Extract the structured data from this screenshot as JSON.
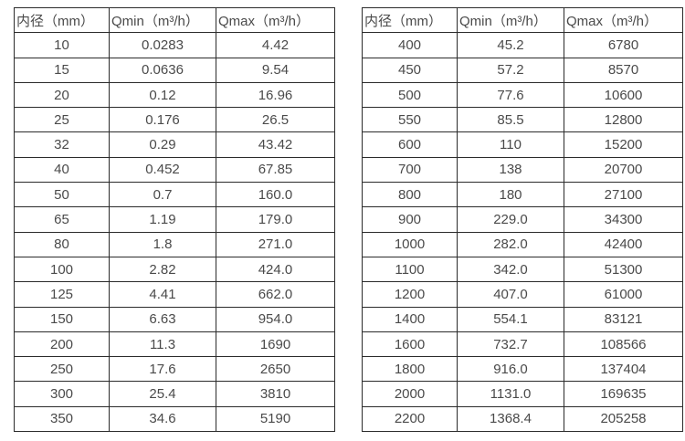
{
  "colors": {
    "background": "#ffffff",
    "border": "#2b2b2b",
    "text": "#4a4a4a"
  },
  "chart_data": [
    {
      "type": "table",
      "name": "flow-rate-table-small-diameters",
      "columns": [
        "内径（mm）",
        "Qmin（m³/h）",
        "Qmax（m³/h）"
      ],
      "rows": [
        [
          "10",
          "0.0283",
          "4.42"
        ],
        [
          "15",
          "0.0636",
          "9.54"
        ],
        [
          "20",
          "0.12",
          "16.96"
        ],
        [
          "25",
          "0.176",
          "26.5"
        ],
        [
          "32",
          "0.29",
          "43.42"
        ],
        [
          "40",
          "0.452",
          "67.85"
        ],
        [
          "50",
          "0.7",
          "160.0"
        ],
        [
          "65",
          "1.19",
          "179.0"
        ],
        [
          "80",
          "1.8",
          "271.0"
        ],
        [
          "100",
          "2.82",
          "424.0"
        ],
        [
          "125",
          "4.41",
          "662.0"
        ],
        [
          "150",
          "6.63",
          "954.0"
        ],
        [
          "200",
          "11.3",
          "1690"
        ],
        [
          "250",
          "17.6",
          "2650"
        ],
        [
          "300",
          "25.4",
          "3810"
        ],
        [
          "350",
          "34.6",
          "5190"
        ]
      ]
    },
    {
      "type": "table",
      "name": "flow-rate-table-large-diameters",
      "columns": [
        "内径（mm）",
        "Qmin（m³/h）",
        "Qmax（m³/h）"
      ],
      "rows": [
        [
          "400",
          "45.2",
          "6780"
        ],
        [
          "450",
          "57.2",
          "8570"
        ],
        [
          "500",
          "77.6",
          "10600"
        ],
        [
          "550",
          "85.5",
          "12800"
        ],
        [
          "600",
          "110",
          "15200"
        ],
        [
          "700",
          "138",
          "20700"
        ],
        [
          "800",
          "180",
          "27100"
        ],
        [
          "900",
          "229.0",
          "34300"
        ],
        [
          "1000",
          "282.0",
          "42400"
        ],
        [
          "1100",
          "342.0",
          "51300"
        ],
        [
          "1200",
          "407.0",
          "61000"
        ],
        [
          "1400",
          "554.1",
          "83121"
        ],
        [
          "1600",
          "732.7",
          "108566"
        ],
        [
          "1800",
          "916.0",
          "137404"
        ],
        [
          "2000",
          "1131.0",
          "169635"
        ],
        [
          "2200",
          "1368.4",
          "205258"
        ]
      ]
    }
  ]
}
